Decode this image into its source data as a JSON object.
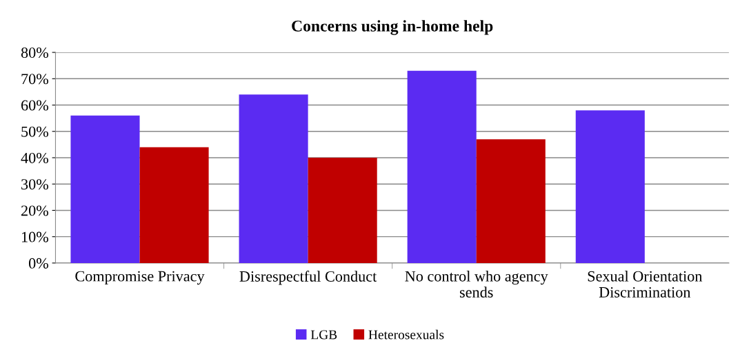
{
  "chart_data": {
    "type": "bar",
    "title": "Concerns using in-home help",
    "categories": [
      "Compromise Privacy",
      "Disrespectful Conduct",
      "No control who agency sends",
      "Sexual Orientation Discrimination"
    ],
    "series": [
      {
        "name": "LGB",
        "color": "#5b2bf2",
        "values": [
          56,
          64,
          73,
          58
        ]
      },
      {
        "name": "Heterosexuals",
        "color": "#c00000",
        "values": [
          44,
          40,
          47,
          null
        ]
      }
    ],
    "ylim": [
      0,
      80
    ],
    "yticks": [
      {
        "value": 0,
        "label": "0%"
      },
      {
        "value": 10,
        "label": "10%"
      },
      {
        "value": 20,
        "label": "20%"
      },
      {
        "value": 30,
        "label": "30%"
      },
      {
        "value": 40,
        "label": "40%"
      },
      {
        "value": 50,
        "label": "50%"
      },
      {
        "value": 60,
        "label": "60%"
      },
      {
        "value": 70,
        "label": "70%"
      },
      {
        "value": 80,
        "label": "80%"
      }
    ],
    "grid": "y",
    "legend": "bottom"
  }
}
